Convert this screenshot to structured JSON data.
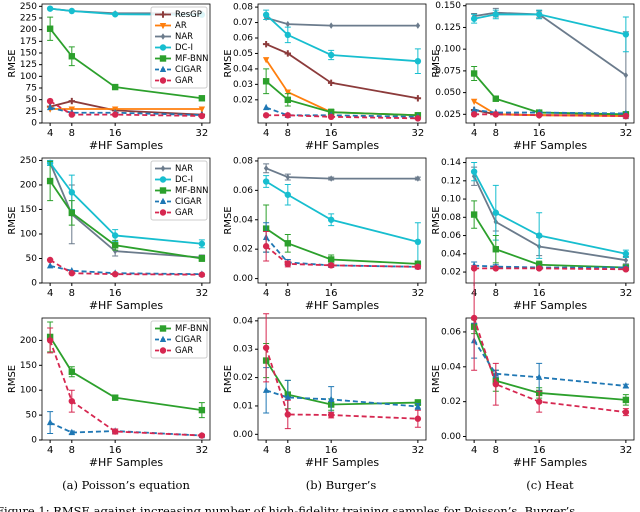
{
  "chart_data": [
    {
      "type": "line",
      "xlabel": "#HF Samples",
      "ylabel": "RMSE",
      "x": [
        4,
        8,
        16,
        32
      ],
      "xticks": [
        4,
        8,
        16,
        32
      ],
      "xlim": [
        2.5,
        33.5
      ],
      "ylim": [
        0,
        255
      ],
      "yticks": [
        0,
        25,
        50,
        75,
        100,
        125,
        150,
        175,
        200,
        225,
        250
      ],
      "legend": "upper right",
      "series": [
        {
          "name": "ResGP",
          "color": "#8c3b3b",
          "marker": "plus",
          "values": [
            35,
            47,
            27,
            18
          ]
        },
        {
          "name": "AR",
          "color": "#ff7f0e",
          "marker": "down",
          "values": [
            30,
            30,
            30,
            30
          ]
        },
        {
          "name": "NAR",
          "color": "#6b7b8c",
          "marker": "diamond",
          "values": [
            245,
            240,
            235,
            235
          ]
        },
        {
          "name": "DC-I",
          "color": "#17becf",
          "marker": "circle",
          "values": [
            245,
            240,
            233,
            232
          ]
        },
        {
          "name": "MF-BNN",
          "color": "#2ca02c",
          "marker": "square",
          "values": [
            202,
            143,
            77,
            53
          ],
          "errors": [
            25,
            20,
            4,
            4
          ]
        },
        {
          "name": "CIGAR",
          "color": "#1f77b4",
          "marker": "up",
          "dashed": true,
          "values": [
            33,
            22,
            22,
            17
          ]
        },
        {
          "name": "GAR",
          "color": "#d62750",
          "marker": "circle",
          "dashed": true,
          "values": [
            47,
            18,
            18,
            15
          ]
        }
      ]
    },
    {
      "type": "line",
      "xlabel": "#HF Samples",
      "ylabel": "RMSE",
      "x": [
        4,
        8,
        16,
        32
      ],
      "xticks": [
        4,
        8,
        16,
        32
      ],
      "xlim": [
        2.5,
        33.5
      ],
      "ylim": [
        0.005,
        0.082
      ],
      "yticks": [
        0.02,
        0.03,
        0.04,
        0.05,
        0.06,
        0.07,
        0.08
      ],
      "series": [
        {
          "name": "ResGP",
          "color": "#8c3b3b",
          "marker": "plus",
          "values": [
            0.056,
            0.05,
            0.031,
            0.021
          ]
        },
        {
          "name": "AR",
          "color": "#ff7f0e",
          "marker": "down",
          "values": [
            0.046,
            0.025,
            0.012,
            0.01
          ]
        },
        {
          "name": "NAR",
          "color": "#6b7b8c",
          "marker": "diamond",
          "values": [
            0.073,
            0.069,
            0.068,
            0.068
          ]
        },
        {
          "name": "DC-I",
          "color": "#17becf",
          "marker": "circle",
          "values": [
            0.075,
            0.062,
            0.049,
            0.045
          ],
          "errors": [
            0.003,
            0.005,
            0.003,
            0.008
          ]
        },
        {
          "name": "MF-BNN",
          "color": "#2ca02c",
          "marker": "square",
          "values": [
            0.032,
            0.02,
            0.012,
            0.01
          ],
          "errors": [
            0.008,
            0.004,
            0.002,
            0.001
          ]
        },
        {
          "name": "CIGAR",
          "color": "#1f77b4",
          "marker": "up",
          "dashed": true,
          "values": [
            0.015,
            0.01,
            0.01,
            0.009
          ]
        },
        {
          "name": "GAR",
          "color": "#d62750",
          "marker": "circle",
          "dashed": true,
          "values": [
            0.01,
            0.01,
            0.009,
            0.008
          ]
        }
      ]
    },
    {
      "type": "line",
      "xlabel": "#HF Samples",
      "ylabel": "RMSE",
      "x": [
        4,
        8,
        16,
        32
      ],
      "xticks": [
        4,
        8,
        16,
        32
      ],
      "xlim": [
        2.5,
        33.5
      ],
      "ylim": [
        0.015,
        0.152
      ],
      "yticks": [
        0.025,
        {
          "value": 0.05,
          "label": "0.050"
        },
        0.075,
        {
          "value": 0.1,
          "label": "0.100"
        },
        0.125,
        {
          "value": 0.15,
          "label": "0.150"
        }
      ],
      "series": [
        {
          "name": "ResGP",
          "color": "#8c3b3b",
          "marker": "plus",
          "values": [
            0.03,
            0.025,
            0.024,
            0.024
          ]
        },
        {
          "name": "AR",
          "color": "#ff7f0e",
          "marker": "down",
          "values": [
            0.04,
            0.025,
            0.024,
            0.023
          ]
        },
        {
          "name": "NAR",
          "color": "#6b7b8c",
          "marker": "diamond",
          "values": [
            0.138,
            0.142,
            0.14,
            0.07
          ],
          "errors": [
            0.003,
            0.005,
            0.004,
            0.05
          ]
        },
        {
          "name": "DC-I",
          "color": "#17becf",
          "marker": "circle",
          "values": [
            0.135,
            0.14,
            0.14,
            0.117
          ],
          "errors": [
            0.005,
            0.005,
            0.005,
            0.02
          ]
        },
        {
          "name": "MF-BNN",
          "color": "#2ca02c",
          "marker": "square",
          "values": [
            0.072,
            0.043,
            0.027,
            0.025
          ],
          "errors": [
            0.008,
            0.003,
            0.002,
            0.002
          ]
        },
        {
          "name": "CIGAR",
          "color": "#1f77b4",
          "marker": "up",
          "dashed": true,
          "values": [
            0.03,
            0.027,
            0.027,
            0.026
          ]
        },
        {
          "name": "GAR",
          "color": "#d62750",
          "marker": "circle",
          "dashed": true,
          "values": [
            0.025,
            0.025,
            0.024,
            0.023
          ]
        }
      ]
    },
    {
      "type": "line",
      "xlabel": "#HF Samples",
      "ylabel": "RMSE",
      "x": [
        4,
        8,
        16,
        32
      ],
      "xticks": [
        4,
        8,
        16,
        32
      ],
      "xlim": [
        2.5,
        33.5
      ],
      "ylim": [
        0,
        255
      ],
      "yticks": [
        0,
        50,
        100,
        150,
        200,
        250
      ],
      "legend": "upper right",
      "series": [
        {
          "name": "NAR",
          "color": "#6b7b8c",
          "marker": "diamond",
          "values": [
            245,
            140,
            65,
            52
          ],
          "errors": [
            5,
            60,
            10,
            5
          ]
        },
        {
          "name": "DC-I",
          "color": "#17becf",
          "marker": "circle",
          "values": [
            245,
            185,
            97,
            80
          ],
          "errors": [
            5,
            35,
            12,
            8
          ]
        },
        {
          "name": "MF-BNN",
          "color": "#2ca02c",
          "marker": "square",
          "values": [
            208,
            143,
            77,
            50
          ],
          "errors": [
            40,
            25,
            10,
            6
          ]
        },
        {
          "name": "CIGAR",
          "color": "#1f77b4",
          "marker": "up",
          "dashed": true,
          "values": [
            35,
            25,
            20,
            18
          ]
        },
        {
          "name": "GAR",
          "color": "#d62750",
          "marker": "circle",
          "dashed": true,
          "values": [
            47,
            20,
            18,
            17
          ]
        }
      ]
    },
    {
      "type": "line",
      "xlabel": "#HF Samples",
      "ylabel": "RMSE",
      "x": [
        4,
        8,
        16,
        32
      ],
      "xticks": [
        4,
        8,
        16,
        32
      ],
      "xlim": [
        2.5,
        33.5
      ],
      "ylim": [
        -0.003,
        0.082
      ],
      "yticks": [
        {
          "value": 0,
          "label": "0.00"
        },
        0.02,
        0.04,
        0.06,
        0.08
      ],
      "series": [
        {
          "name": "NAR",
          "color": "#6b7b8c",
          "marker": "diamond",
          "values": [
            0.075,
            0.069,
            0.068,
            0.068
          ],
          "errors": [
            0.003,
            0.002,
            0.001,
            0.001
          ]
        },
        {
          "name": "DC-I",
          "color": "#17becf",
          "marker": "circle",
          "values": [
            0.066,
            0.057,
            0.04,
            0.025
          ],
          "errors": [
            0.004,
            0.007,
            0.004,
            0.013
          ]
        },
        {
          "name": "MF-BNN",
          "color": "#2ca02c",
          "marker": "square",
          "values": [
            0.034,
            0.024,
            0.013,
            0.01
          ],
          "errors": [
            0.016,
            0.006,
            0.003,
            0.002
          ]
        },
        {
          "name": "CIGAR",
          "color": "#1f77b4",
          "marker": "up",
          "dashed": true,
          "values": [
            0.028,
            0.011,
            0.009,
            0.008
          ],
          "errors": [
            0.01,
            0.002,
            0.001,
            0.001
          ]
        },
        {
          "name": "GAR",
          "color": "#d62750",
          "marker": "circle",
          "dashed": true,
          "values": [
            0.022,
            0.01,
            0.009,
            0.008
          ],
          "errors": [
            0.01,
            0.002,
            0.001,
            0.001
          ]
        }
      ]
    },
    {
      "type": "line",
      "xlabel": "#HF Samples",
      "ylabel": "RMSE",
      "x": [
        4,
        8,
        16,
        32
      ],
      "xticks": [
        4,
        8,
        16,
        32
      ],
      "xlim": [
        2.5,
        33.5
      ],
      "ylim": [
        0.008,
        0.145
      ],
      "yticks": [
        0.02,
        0.04,
        0.06,
        0.08,
        {
          "value": 0.1,
          "label": "0.10"
        },
        0.12,
        0.14
      ],
      "series": [
        {
          "name": "NAR",
          "color": "#6b7b8c",
          "marker": "diamond",
          "values": [
            0.125,
            0.075,
            0.048,
            0.033
          ],
          "errors": [
            0.01,
            0.01,
            0.01,
            0.004
          ]
        },
        {
          "name": "DC-I",
          "color": "#17becf",
          "marker": "circle",
          "values": [
            0.13,
            0.085,
            0.06,
            0.04
          ],
          "errors": [
            0.01,
            0.03,
            0.025,
            0.004
          ]
        },
        {
          "name": "MF-BNN",
          "color": "#2ca02c",
          "marker": "square",
          "values": [
            0.083,
            0.045,
            0.028,
            0.025
          ],
          "errors": [
            0.015,
            0.015,
            0.004,
            0.002
          ]
        },
        {
          "name": "CIGAR",
          "color": "#1f77b4",
          "marker": "up",
          "dashed": true,
          "values": [
            0.027,
            0.026,
            0.025,
            0.025
          ],
          "errors": [
            0.004,
            0.002,
            0.001,
            0.001
          ]
        },
        {
          "name": "GAR",
          "color": "#d62750",
          "marker": "circle",
          "dashed": true,
          "values": [
            0.024,
            0.024,
            0.024,
            0.023
          ]
        }
      ]
    },
    {
      "type": "line",
      "xlabel": "#HF Samples",
      "ylabel": "RMSE",
      "x": [
        4,
        8,
        16,
        32
      ],
      "xticks": [
        4,
        8,
        16,
        32
      ],
      "xlim": [
        2.5,
        33.5
      ],
      "ylim": [
        0,
        245
      ],
      "yticks": [
        0,
        50,
        100,
        150,
        200
      ],
      "legend": "upper right",
      "series": [
        {
          "name": "MF-BNN",
          "color": "#2ca02c",
          "marker": "square",
          "values": [
            207,
            137,
            85,
            60
          ],
          "errors": [
            30,
            10,
            4,
            15
          ]
        },
        {
          "name": "CIGAR",
          "color": "#1f77b4",
          "marker": "up",
          "dashed": true,
          "values": [
            35,
            15,
            18,
            9
          ],
          "errors": [
            22,
            3,
            4,
            2
          ]
        },
        {
          "name": "GAR",
          "color": "#d62750",
          "marker": "circle",
          "dashed": true,
          "values": [
            200,
            78,
            17,
            9
          ],
          "errors": [
            25,
            22,
            5,
            2
          ]
        }
      ]
    },
    {
      "type": "line",
      "xlabel": "#HF Samples",
      "ylabel": "RMSE",
      "x": [
        4,
        8,
        16,
        32
      ],
      "xticks": [
        4,
        8,
        16,
        32
      ],
      "xlim": [
        2.5,
        33.5
      ],
      "ylim": [
        -0.002,
        0.041
      ],
      "yticks": [
        {
          "value": 0,
          "label": "0.00"
        },
        0.01,
        0.02,
        0.03,
        0.04
      ],
      "series": [
        {
          "name": "MF-BNN",
          "color": "#2ca02c",
          "marker": "square",
          "values": [
            0.026,
            0.014,
            0.0105,
            0.0112
          ],
          "errors": [
            0.006,
            0.005,
            0.002,
            0.001
          ]
        },
        {
          "name": "CIGAR",
          "color": "#1f77b4",
          "marker": "up",
          "dashed": true,
          "values": [
            0.0155,
            0.013,
            0.0123,
            0.0098
          ],
          "errors": [
            0.008,
            0.006,
            0.0045,
            0.001
          ]
        },
        {
          "name": "GAR",
          "color": "#d62750",
          "marker": "circle",
          "dashed": true,
          "values": [
            0.0305,
            0.007,
            0.0068,
            0.0055
          ],
          "errors": [
            0.012,
            0.005,
            0.001,
            0.003
          ]
        }
      ]
    },
    {
      "type": "line",
      "xlabel": "#HF Samples",
      "ylabel": "RMSE",
      "x": [
        4,
        8,
        16,
        32
      ],
      "xticks": [
        4,
        8,
        16,
        32
      ],
      "xlim": [
        2.5,
        33.5
      ],
      "ylim": [
        -0.002,
        0.068
      ],
      "yticks": [
        {
          "value": 0,
          "label": "0.00"
        },
        0.02,
        0.04,
        0.06
      ],
      "series": [
        {
          "name": "MF-BNN",
          "color": "#2ca02c",
          "marker": "square",
          "values": [
            0.063,
            0.032,
            0.025,
            0.021
          ],
          "errors": [
            0.004,
            0.006,
            0.003,
            0.003
          ]
        },
        {
          "name": "CIGAR",
          "color": "#1f77b4",
          "marker": "up",
          "dashed": true,
          "values": [
            0.055,
            0.036,
            0.034,
            0.029
          ],
          "errors": [
            0.01,
            0.002,
            0.008,
            0.001
          ]
        },
        {
          "name": "GAR",
          "color": "#d62750",
          "marker": "circle",
          "dashed": true,
          "values": [
            0.068,
            0.03,
            0.02,
            0.014
          ],
          "errors": [
            0.03,
            0.012,
            0.006,
            0.002
          ]
        }
      ]
    }
  ],
  "captions": [
    "(a) Poisson’s equation",
    "(b) Burger’s",
    "(c) Heat"
  ],
  "figure_caption": "Figure 1: RMSE against increasing number of high-fidelity training samples for Poisson’s, Burger’s"
}
